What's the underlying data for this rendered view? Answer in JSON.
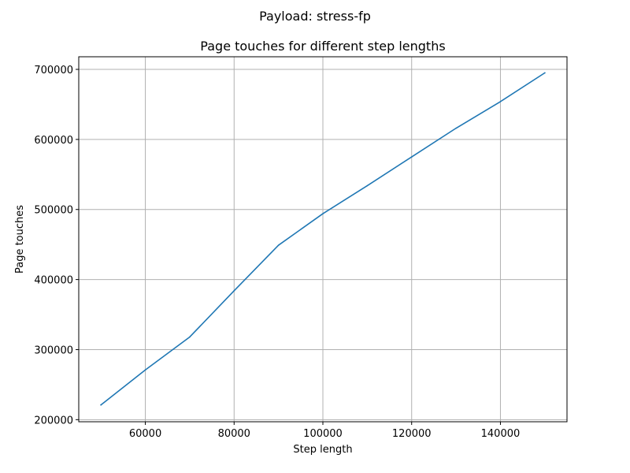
{
  "figure": {
    "suptitle": "Payload: stress-fp"
  },
  "colors": {
    "line": "#1f77b4",
    "grid": "#b0b0b0",
    "background": "#ffffff"
  },
  "chart_data": {
    "type": "line",
    "title": "Page touches for different step lengths",
    "xlabel": "Step length",
    "ylabel": "Page touches",
    "xlim": [
      45000,
      155000
    ],
    "ylim": [
      197000,
      718000
    ],
    "xticks": [
      60000,
      80000,
      100000,
      120000,
      140000
    ],
    "yticks": [
      200000,
      300000,
      400000,
      500000,
      600000,
      700000
    ],
    "grid": true,
    "legend": "none",
    "x": [
      50000,
      60000,
      70000,
      80000,
      90000,
      100000,
      110000,
      120000,
      130000,
      140000,
      150000
    ],
    "series": [
      {
        "values": [
          221000,
          271000,
          318000,
          384000,
          449000,
          494000,
          534000,
          575000,
          616000,
          654000,
          695000
        ]
      }
    ]
  }
}
